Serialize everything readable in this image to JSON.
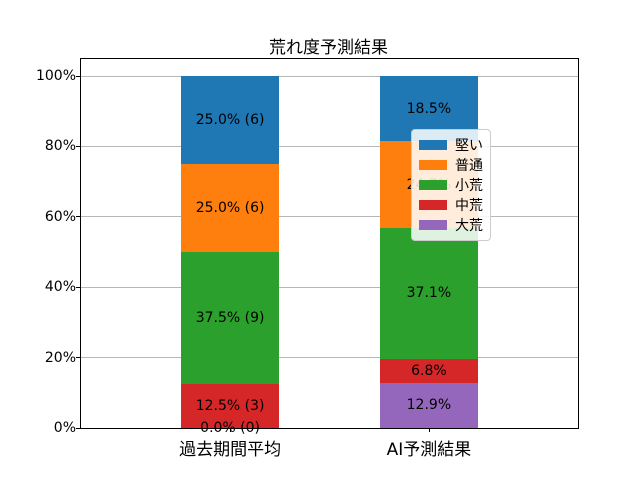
{
  "chart_data": {
    "type": "bar",
    "stacked": true,
    "title": "荒れ度予測結果",
    "categories": [
      "過去期間平均",
      "AI予測結果"
    ],
    "series": [
      {
        "name": "堅い",
        "color": "#1f77b4",
        "values": [
          25.0,
          18.5
        ],
        "labels": [
          "25.0% (6)",
          "18.5%"
        ]
      },
      {
        "name": "普通",
        "color": "#ff7f0e",
        "values": [
          25.0,
          24.7
        ],
        "labels": [
          "25.0% (6)",
          "24.7%"
        ]
      },
      {
        "name": "小荒",
        "color": "#2ca02c",
        "values": [
          37.5,
          37.1
        ],
        "labels": [
          "37.5% (9)",
          "37.1%"
        ]
      },
      {
        "name": "中荒",
        "color": "#d62728",
        "values": [
          12.5,
          6.8
        ],
        "labels": [
          "12.5% (3)",
          "6.8%"
        ]
      },
      {
        "name": "大荒",
        "color": "#9467bd",
        "values": [
          0.0,
          12.9
        ],
        "labels": [
          "0.0% (0)",
          "12.9%"
        ]
      }
    ],
    "stack_order_bottom_to_top": [
      "大荒",
      "中荒",
      "小荒",
      "普通",
      "堅い"
    ],
    "legend_order": [
      "堅い",
      "普通",
      "小荒",
      "中荒",
      "大荒"
    ],
    "legend_position": "center right",
    "yticks": [
      "0%",
      "20%",
      "40%",
      "60%",
      "80%",
      "100%"
    ],
    "ytick_values": [
      0,
      20,
      40,
      60,
      80,
      100
    ],
    "ylim": [
      0,
      104.8
    ],
    "grid": true,
    "grid_color": "#b7b7b7",
    "xlabel": "",
    "ylabel": ""
  }
}
